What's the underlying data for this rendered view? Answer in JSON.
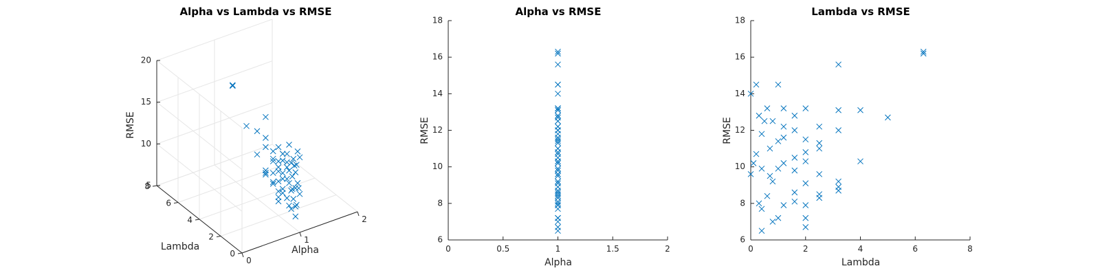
{
  "colors": {
    "marker": "#0072bd",
    "axis": "#262626",
    "grid": "#e6e6e6"
  },
  "chart_data": [
    {
      "type": "scatter3d",
      "title": "Alpha vs Lambda vs RMSE",
      "xlabel": "Alpha",
      "ylabel": "Lambda",
      "zlabel": "RMSE",
      "xlim": [
        0,
        2
      ],
      "ylim": [
        0,
        8
      ],
      "zlim": [
        5,
        20
      ],
      "xticks": [
        0,
        1,
        2
      ],
      "yticks": [
        0,
        2,
        4,
        6,
        8
      ],
      "zticks": [
        5,
        10,
        15,
        20
      ],
      "grid": true,
      "marker": "x",
      "points": [
        [
          1,
          6.3,
          16.3
        ],
        [
          1,
          6.3,
          16.2
        ],
        [
          1,
          3.2,
          15.6
        ],
        [
          1,
          0.2,
          14.5
        ],
        [
          1,
          1.0,
          14.5
        ],
        [
          1,
          0.0,
          14.0
        ],
        [
          1,
          0.6,
          13.2
        ],
        [
          1,
          1.2,
          13.2
        ],
        [
          1,
          2.0,
          13.2
        ],
        [
          1,
          3.2,
          13.1
        ],
        [
          1,
          4.0,
          13.1
        ],
        [
          1,
          0.3,
          12.8
        ],
        [
          1,
          5.0,
          12.7
        ],
        [
          1,
          1.6,
          12.8
        ],
        [
          1,
          0.5,
          12.5
        ],
        [
          1,
          0.8,
          12.5
        ],
        [
          1,
          1.2,
          12.2
        ],
        [
          1,
          2.5,
          12.2
        ],
        [
          1,
          1.6,
          12.0
        ],
        [
          1,
          3.2,
          12.0
        ],
        [
          1,
          0.4,
          11.8
        ],
        [
          1,
          1.2,
          11.6
        ],
        [
          1,
          2.0,
          11.5
        ],
        [
          1,
          1.0,
          11.4
        ],
        [
          1,
          2.5,
          11.3
        ],
        [
          1,
          2.5,
          11.0
        ],
        [
          1,
          0.7,
          11.0
        ],
        [
          1,
          2.0,
          10.8
        ],
        [
          1,
          0.2,
          10.7
        ],
        [
          1,
          1.6,
          10.5
        ],
        [
          1,
          4.0,
          10.3
        ],
        [
          1,
          1.2,
          10.2
        ],
        [
          1,
          0.1,
          10.2
        ],
        [
          1,
          2.0,
          10.3
        ],
        [
          1,
          0.4,
          9.9
        ],
        [
          1,
          1.0,
          9.9
        ],
        [
          1,
          2.5,
          9.6
        ],
        [
          1,
          1.6,
          9.8
        ],
        [
          1,
          0.0,
          9.6
        ],
        [
          1,
          0.7,
          9.5
        ],
        [
          1,
          3.2,
          9.2
        ],
        [
          1,
          2.0,
          9.1
        ],
        [
          1,
          0.8,
          9.2
        ],
        [
          1,
          3.2,
          8.9
        ],
        [
          1,
          1.6,
          8.6
        ],
        [
          1,
          2.5,
          8.5
        ],
        [
          1,
          3.2,
          8.7
        ],
        [
          1,
          0.6,
          8.4
        ],
        [
          1,
          2.5,
          8.3
        ],
        [
          1,
          1.6,
          8.1
        ],
        [
          1,
          0.3,
          8.0
        ],
        [
          1,
          1.2,
          7.9
        ],
        [
          1,
          2.0,
          7.9
        ],
        [
          1,
          0.4,
          7.7
        ],
        [
          1,
          2.0,
          7.2
        ],
        [
          1,
          1.0,
          7.2
        ],
        [
          1,
          0.8,
          7.0
        ],
        [
          1,
          2.0,
          6.7
        ],
        [
          1,
          0.4,
          6.5
        ]
      ]
    },
    {
      "type": "scatter",
      "title": "Alpha vs RMSE",
      "xlabel": "Alpha",
      "ylabel": "RMSE",
      "xlim": [
        0,
        2
      ],
      "ylim": [
        6,
        18
      ],
      "xticks": [
        0,
        0.5,
        1,
        1.5,
        2
      ],
      "yticks": [
        6,
        8,
        10,
        12,
        14,
        16,
        18
      ],
      "grid": false,
      "marker": "x",
      "x": [
        1,
        1,
        1,
        1,
        1,
        1,
        1,
        1,
        1,
        1,
        1,
        1,
        1,
        1,
        1,
        1,
        1,
        1,
        1,
        1,
        1,
        1,
        1,
        1,
        1,
        1,
        1,
        1,
        1,
        1,
        1,
        1,
        1,
        1,
        1,
        1,
        1,
        1,
        1,
        1,
        1,
        1,
        1,
        1,
        1,
        1,
        1,
        1,
        1,
        1,
        1,
        1,
        1,
        1,
        1,
        1,
        1,
        1,
        1
      ],
      "y": [
        16.3,
        16.2,
        15.6,
        14.5,
        14.5,
        14.0,
        13.2,
        13.2,
        13.2,
        13.1,
        13.1,
        12.8,
        12.7,
        12.8,
        12.5,
        12.5,
        12.2,
        12.2,
        12.0,
        12.0,
        11.8,
        11.6,
        11.5,
        11.4,
        11.3,
        11.0,
        11.0,
        10.8,
        10.7,
        10.5,
        10.3,
        10.2,
        10.2,
        10.3,
        9.9,
        9.9,
        9.6,
        9.8,
        9.6,
        9.5,
        9.2,
        9.1,
        9.2,
        8.9,
        8.6,
        8.5,
        8.7,
        8.4,
        8.3,
        8.1,
        8.0,
        7.9,
        7.9,
        7.7,
        7.2,
        7.2,
        7.0,
        6.7,
        6.5
      ]
    },
    {
      "type": "scatter",
      "title": "Lambda vs RMSE",
      "xlabel": "Lambda",
      "ylabel": "RMSE",
      "xlim": [
        0,
        8
      ],
      "ylim": [
        6,
        18
      ],
      "xticks": [
        0,
        2,
        4,
        6,
        8
      ],
      "yticks": [
        6,
        8,
        10,
        12,
        14,
        16,
        18
      ],
      "grid": false,
      "marker": "x",
      "x": [
        6.3,
        6.3,
        3.2,
        0.2,
        1.0,
        0.0,
        0.6,
        1.2,
        2.0,
        3.2,
        4.0,
        0.3,
        5.0,
        1.6,
        0.5,
        0.8,
        1.2,
        2.5,
        1.6,
        3.2,
        0.4,
        1.2,
        2.0,
        1.0,
        2.5,
        2.5,
        0.7,
        2.0,
        0.2,
        1.6,
        4.0,
        1.2,
        0.1,
        2.0,
        0.4,
        1.0,
        2.5,
        1.6,
        0.0,
        0.7,
        3.2,
        2.0,
        0.8,
        3.2,
        1.6,
        2.5,
        3.2,
        0.6,
        2.5,
        1.6,
        0.3,
        1.2,
        2.0,
        0.4,
        2.0,
        1.0,
        0.8,
        2.0,
        0.4
      ],
      "y": [
        16.3,
        16.2,
        15.6,
        14.5,
        14.5,
        14.0,
        13.2,
        13.2,
        13.2,
        13.1,
        13.1,
        12.8,
        12.7,
        12.8,
        12.5,
        12.5,
        12.2,
        12.2,
        12.0,
        12.0,
        11.8,
        11.6,
        11.5,
        11.4,
        11.3,
        11.0,
        11.0,
        10.8,
        10.7,
        10.5,
        10.3,
        10.2,
        10.2,
        10.3,
        9.9,
        9.9,
        9.6,
        9.8,
        9.6,
        9.5,
        9.2,
        9.1,
        9.2,
        8.9,
        8.6,
        8.5,
        8.7,
        8.4,
        8.3,
        8.1,
        8.0,
        7.9,
        7.9,
        7.7,
        7.2,
        7.2,
        7.0,
        6.7,
        6.5
      ]
    }
  ]
}
